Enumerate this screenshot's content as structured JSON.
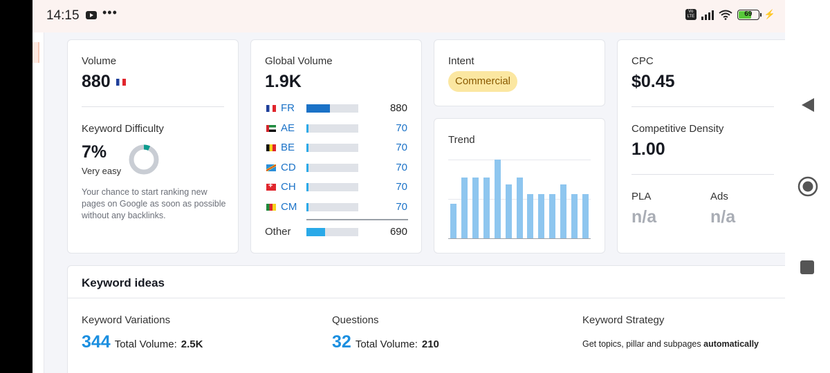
{
  "status_bar": {
    "time": "14:15",
    "volte": "Vo LTE",
    "battery": "69"
  },
  "volume_card": {
    "label": "Volume",
    "value": "880",
    "flag": "flag-fr"
  },
  "difficulty": {
    "label": "Keyword Difficulty",
    "value": "7%",
    "percent": 7,
    "rating": "Very easy",
    "description": "Your chance to start ranking new pages on Google as soon as possible without any backlinks."
  },
  "global_volume": {
    "label": "Global Volume",
    "value": "1.9K",
    "rows": [
      {
        "code": "FR",
        "flag": "flag-fr",
        "value": "880",
        "fill_pct": 45
      },
      {
        "code": "AE",
        "flag": "flag-ae",
        "value": "70",
        "fill_pct": 4
      },
      {
        "code": "BE",
        "flag": "flag-be",
        "value": "70",
        "fill_pct": 4
      },
      {
        "code": "CD",
        "flag": "flag-cd",
        "value": "70",
        "fill_pct": 4
      },
      {
        "code": "CH",
        "flag": "flag-ch",
        "value": "70",
        "fill_pct": 4
      },
      {
        "code": "CM",
        "flag": "flag-cm",
        "value": "70",
        "fill_pct": 4
      }
    ],
    "other": {
      "label": "Other",
      "value": "690",
      "fill_pct": 36
    },
    "colors": {
      "primary": "#1b72c7",
      "other": "#2aa9e8"
    }
  },
  "intent": {
    "label": "Intent",
    "badge": "Commercial",
    "badge_bg": "#fbe7a1",
    "badge_color": "#8a5a00"
  },
  "trend": {
    "label": "Trend",
    "values": [
      0.44,
      0.77,
      0.77,
      0.77,
      1.0,
      0.68,
      0.77,
      0.56,
      0.56,
      0.56,
      0.68,
      0.56,
      0.56
    ],
    "color": "#8ec6ef"
  },
  "cpc": {
    "label": "CPC",
    "value": "$0.45"
  },
  "competitive_density": {
    "label": "Competitive Density",
    "value": "1.00"
  },
  "pla": {
    "label": "PLA",
    "value": "n/a"
  },
  "ads": {
    "label": "Ads",
    "value": "n/a"
  },
  "keyword_ideas": {
    "title": "Keyword ideas",
    "variations": {
      "label": "Keyword Variations",
      "count": "344",
      "total_label": "Total Volume:",
      "total": "2.5K"
    },
    "questions": {
      "label": "Questions",
      "count": "32",
      "total_label": "Total Volume:",
      "total": "210"
    },
    "strategy": {
      "label": "Keyword Strategy",
      "desc": "Get topics, pillar and subpages",
      "desc_bold": "automatically"
    }
  }
}
